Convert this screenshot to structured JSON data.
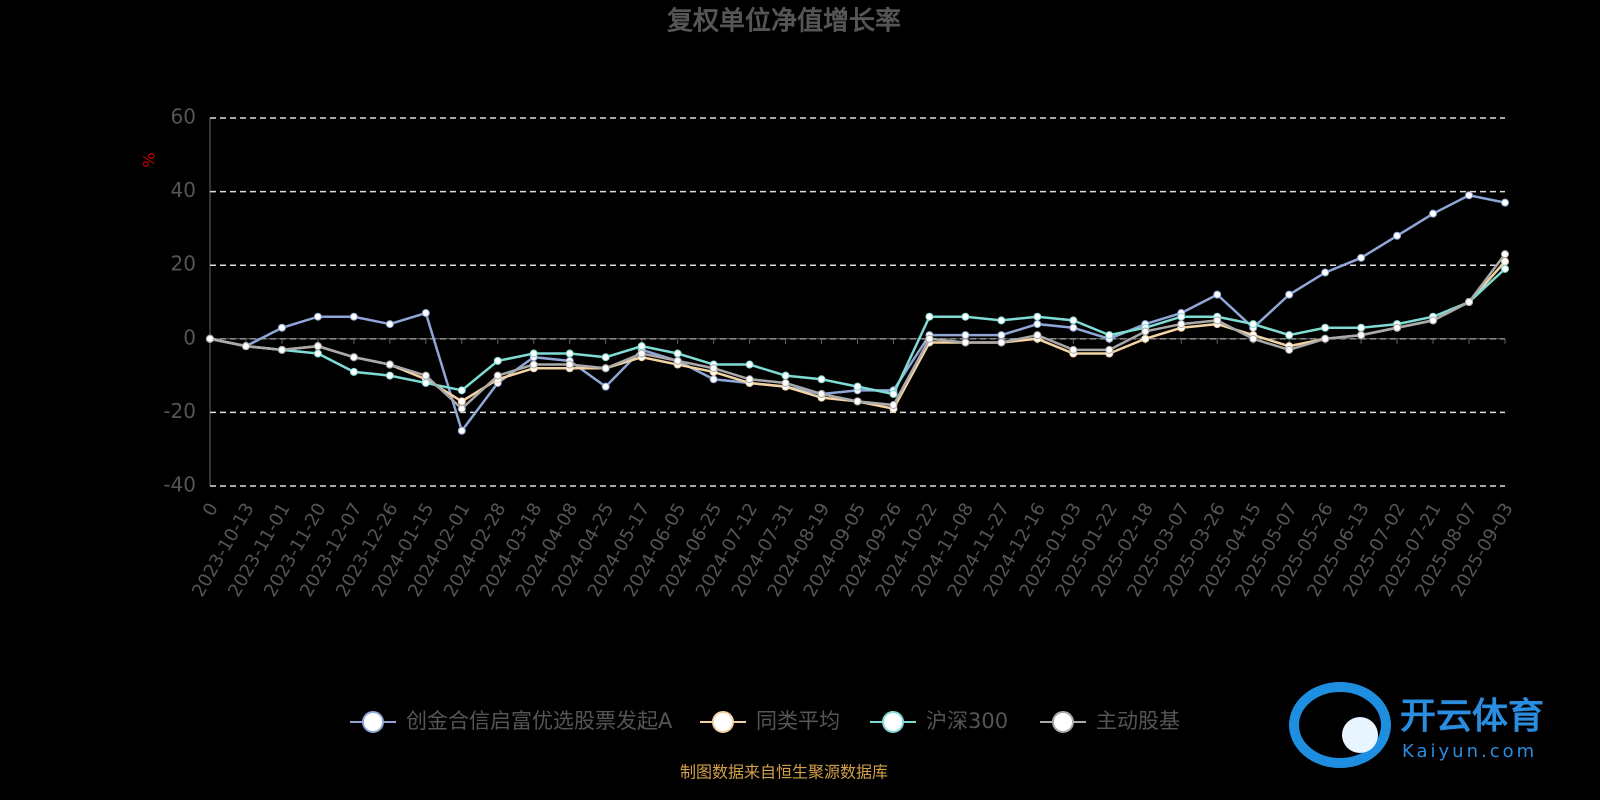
{
  "chart_data": {
    "type": "line",
    "title": "复权单位净值增长率",
    "y_label": "%",
    "source": "制图数据来自恒生聚源数据库",
    "watermark": {
      "brand": "开云体育",
      "site": "Kaiyun.com"
    },
    "categories": [
      "0",
      "2023-10-13",
      "2023-11-01",
      "2023-11-20",
      "2023-12-07",
      "2023-12-26",
      "2024-01-15",
      "2024-02-01",
      "2024-02-28",
      "2024-03-18",
      "2024-04-08",
      "2024-04-25",
      "2024-05-17",
      "2024-06-05",
      "2024-06-25",
      "2024-07-12",
      "2024-07-31",
      "2024-08-19",
      "2024-09-05",
      "2024-09-26",
      "2024-10-22",
      "2024-11-08",
      "2024-11-27",
      "2024-12-16",
      "2025-01-03",
      "2025-01-22",
      "2025-02-18",
      "2025-03-07",
      "2025-03-26",
      "2025-04-15",
      "2025-05-07",
      "2025-05-26",
      "2025-06-13",
      "2025-07-02",
      "2025-07-21",
      "2025-08-07",
      "2025-09-03"
    ],
    "series": [
      {
        "name": "创金合信启富优选股票发起A",
        "color": "#8fa6d6",
        "values": [
          0,
          -2,
          3,
          6,
          6,
          4,
          7,
          -25,
          -12,
          -5,
          -6,
          -13,
          -3,
          -6,
          -11,
          -12,
          -13,
          -15,
          -14,
          -14,
          1,
          1,
          1,
          4,
          3,
          0,
          4,
          7,
          12,
          3,
          12,
          18,
          22,
          28,
          34,
          39,
          37
        ]
      },
      {
        "name": "同类平均",
        "color": "#f3d3a3",
        "values": [
          0,
          -2,
          -3,
          -2,
          -5,
          -7,
          -11,
          -17,
          -11,
          -8,
          -8,
          -8,
          -5,
          -7,
          -9,
          -12,
          -13,
          -16,
          -17,
          -19,
          -1,
          -1,
          -1,
          0,
          -4,
          -4,
          0,
          3,
          4,
          1,
          -2,
          0,
          1,
          3,
          5,
          10,
          21
        ]
      },
      {
        "name": "沪深300",
        "color": "#7fdcd4",
        "values": [
          0,
          -2,
          -3,
          -4,
          -9,
          -10,
          -12,
          -14,
          -6,
          -4,
          -4,
          -5,
          -2,
          -4,
          -7,
          -7,
          -10,
          -11,
          -13,
          -15,
          6,
          6,
          5,
          6,
          5,
          1,
          3,
          6,
          6,
          4,
          1,
          3,
          3,
          4,
          6,
          10,
          19
        ]
      },
      {
        "name": "主动股基",
        "color": "#a9a9a9",
        "values": [
          0,
          -2,
          -3,
          -2,
          -5,
          -7,
          -10,
          -19,
          -10,
          -7,
          -7,
          -8,
          -4,
          -6,
          -8,
          -11,
          -12,
          -15,
          -17,
          -18,
          0,
          -1,
          -1,
          1,
          -3,
          -3,
          2,
          4,
          5,
          0,
          -3,
          0,
          1,
          3,
          5,
          10,
          23
        ]
      }
    ],
    "ylim": [
      -40,
      60
    ],
    "yticks": [
      -40,
      -20,
      0,
      20,
      40,
      60
    ],
    "grid": true
  }
}
